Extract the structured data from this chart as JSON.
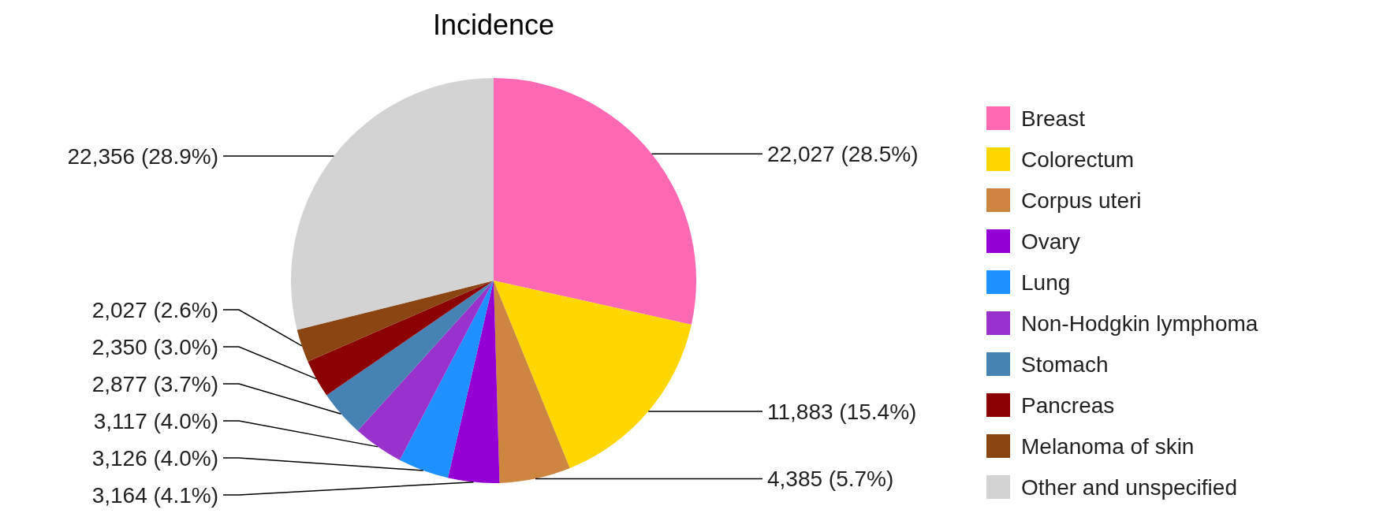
{
  "chart_data": {
    "type": "pie",
    "title": "Incidence",
    "categories": [
      "Breast",
      "Colorectum",
      "Corpus uteri",
      "Ovary",
      "Lung",
      "Non-Hodgkin lymphoma",
      "Stomach",
      "Pancreas",
      "Melanoma of skin",
      "Other and unspecified"
    ],
    "values": [
      22027,
      11883,
      4385,
      3164,
      3126,
      3117,
      2877,
      2350,
      2027,
      22356
    ],
    "colors": [
      "#ff69b4",
      "#ffd700",
      "#cd853f",
      "#9400d3",
      "#1e90ff",
      "#9932cc",
      "#4682b4",
      "#8b0000",
      "#8b4513",
      "#d3d3d3"
    ],
    "value_labels": [
      "22,027 (28.5%)",
      "11,883 (15.4%)",
      "4,385 (5.7%)",
      "3,164 (4.1%)",
      "3,126 (4.0%)",
      "3,117 (4.0%)",
      "2,877 (3.7%)",
      "2,350 (3.0%)",
      "2,027 (2.6%)",
      "22,356 (28.9%)"
    ],
    "legend": "right"
  }
}
